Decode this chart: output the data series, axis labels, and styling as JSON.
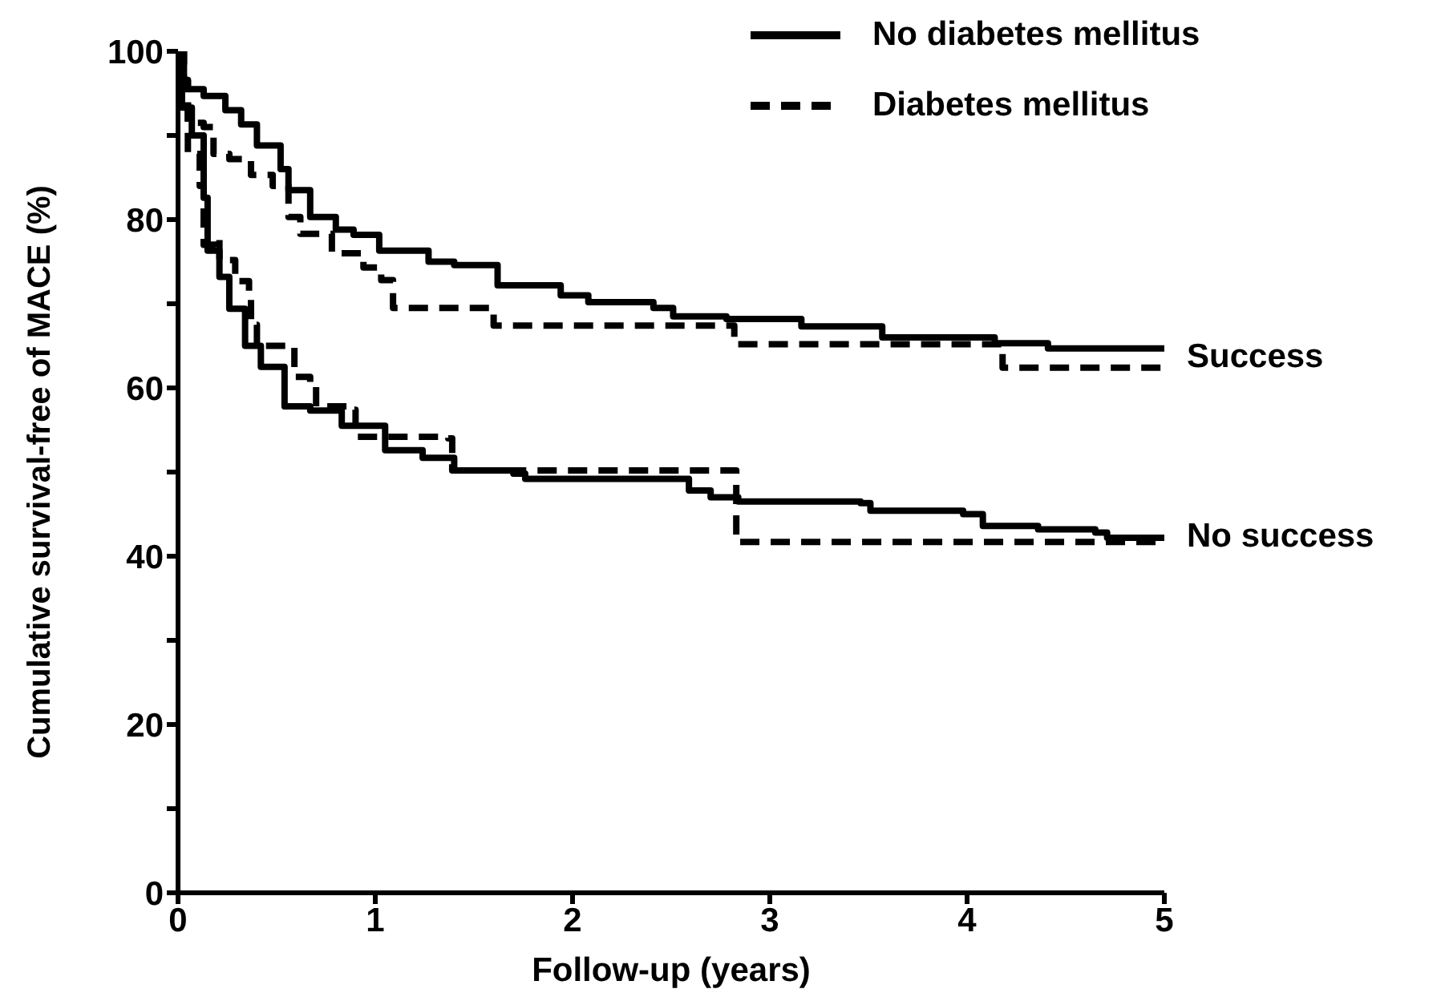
{
  "chart_data": {
    "type": "step",
    "xlabel": "Follow-up (years)",
    "ylabel": "Cumulative survival-free of MACE (%)",
    "xlim": [
      0,
      5
    ],
    "xticks": [
      0,
      1,
      2,
      3,
      4,
      5
    ],
    "ylim": [
      0,
      100
    ],
    "yticks": [
      0,
      {
        "value": 10,
        "label": null
      },
      20,
      {
        "value": 30,
        "label": null
      },
      40,
      {
        "value": 50,
        "label": null
      },
      60,
      {
        "value": 70,
        "label": null
      },
      80,
      {
        "value": 90,
        "label": null
      },
      100
    ],
    "grid": false,
    "legend": "top right",
    "marker": "none",
    "annotations": [
      {
        "text": "Success",
        "x": 5,
        "y": 63.3
      },
      {
        "text": "No success",
        "x": 5,
        "y": 42
      }
    ],
    "series": [
      {
        "name": "No diabetes mellitus",
        "color": "#000000",
        "line_style": "solid",
        "x": [
          0,
          0.03,
          0.13,
          0.24,
          0.32,
          0.4,
          0.52,
          0.56,
          0.67,
          0.8,
          0.89,
          1.02,
          1.17,
          1.27,
          1.4,
          1.62,
          1.94,
          2.08,
          2.41,
          2.51,
          2.78,
          3.16,
          3.57,
          4.14,
          4.41,
          5
        ],
        "values": [
          100,
          95.5,
          94.7,
          93,
          91.3,
          88.8,
          86,
          83.5,
          80.3,
          78.8,
          78.2,
          76.3,
          76.3,
          75,
          74.6,
          72.2,
          71,
          70.2,
          69.5,
          68.5,
          68.2,
          67.3,
          66,
          65.3,
          64.7,
          64.3
        ]
      },
      {
        "name": "Diabetes mellitus",
        "color": "#000000",
        "line_style": "dashed",
        "x": [
          0,
          0.02,
          0.05,
          0.13,
          0.18,
          0.26,
          0.37,
          0.48,
          0.56,
          0.62,
          0.78,
          0.94,
          1.03,
          1.09,
          1.54,
          1.6,
          2.8,
          2.82,
          4.16,
          4.18,
          5
        ],
        "values": [
          100,
          96.5,
          91.5,
          91,
          87.8,
          87.2,
          85.3,
          84,
          80.3,
          78.3,
          76,
          74.3,
          72.8,
          69.5,
          69.5,
          67.4,
          67.4,
          65.2,
          65.2,
          62.4,
          62.4
        ]
      },
      {
        "color": "#000000",
        "line_style": "solid",
        "x": [
          0,
          0.02,
          0.07,
          0.13,
          0.15,
          0.21,
          0.26,
          0.34,
          0.42,
          0.54,
          0.67,
          0.83,
          1.05,
          1.24,
          1.4,
          1.7,
          1.76,
          2.46,
          2.59,
          2.7,
          2.84,
          3.46,
          3.51,
          3.98,
          4.08,
          4.36,
          4.65,
          4.71,
          5
        ],
        "values": [
          100,
          93.3,
          90,
          82.6,
          76.3,
          73.2,
          69.4,
          65,
          62.5,
          57.8,
          57.3,
          55.5,
          52.6,
          51.7,
          50.2,
          49.8,
          49.2,
          49.2,
          47.8,
          47,
          46.5,
          46.3,
          45.4,
          45,
          43.6,
          43.2,
          42.8,
          42.2,
          42.2
        ]
      },
      {
        "color": "#000000",
        "line_style": "dashed",
        "x": [
          0,
          0.03,
          0.05,
          0.11,
          0.13,
          0.18,
          0.21,
          0.26,
          0.29,
          0.36,
          0.37,
          0.4,
          0.56,
          0.59,
          0.67,
          0.7,
          0.89,
          0.9,
          1.37,
          1.39,
          2.81,
          2.83,
          5
        ],
        "values": [
          100,
          96.6,
          87.8,
          84,
          77,
          77.8,
          75.2,
          75.2,
          72.7,
          71.3,
          67.5,
          65,
          65,
          61.3,
          60.7,
          57.8,
          57.4,
          54.2,
          54,
          50.2,
          50.2,
          41.7,
          41.7
        ]
      }
    ]
  }
}
